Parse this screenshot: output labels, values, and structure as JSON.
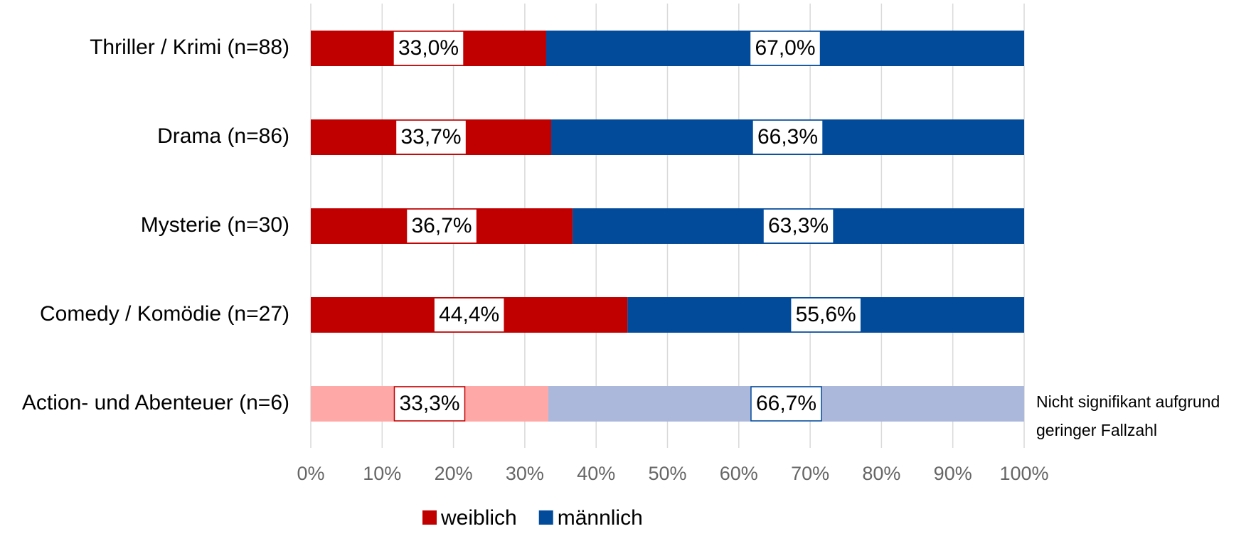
{
  "chart_data": {
    "type": "stacked_barh",
    "categories": [
      "Thriller / Krimi (n=88)",
      "Drama (n=86)",
      "Mysterie (n=30)",
      "Comedy / Komödie (n=27)",
      "Action- und Abenteuer (n=6)"
    ],
    "series": [
      {
        "name": "weiblich",
        "color": "#c00000",
        "colors": [
          "#c00000",
          "#c00000",
          "#c00000",
          "#c00000",
          "#ffa8a8"
        ],
        "values": [
          33.0,
          33.7,
          36.7,
          44.4,
          33.3
        ],
        "value_labels": [
          "33,0%",
          "33,7%",
          "36,7%",
          "44,4%",
          "33,3%"
        ]
      },
      {
        "name": "männlich",
        "color": "#024b9b",
        "colors": [
          "#024b9b",
          "#024b9b",
          "#024b9b",
          "#024b9b",
          "#abb8dc"
        ],
        "values": [
          67.0,
          66.3,
          63.3,
          55.6,
          66.7
        ],
        "value_labels": [
          "67,0%",
          "66,3%",
          "63,3%",
          "55,6%",
          "66,7%"
        ]
      }
    ],
    "xlim": [
      0,
      100
    ],
    "xticks": [
      {
        "value": 0,
        "label": "0%"
      },
      {
        "value": 10,
        "label": "10%"
      },
      {
        "value": 20,
        "label": "20%"
      },
      {
        "value": 30,
        "label": "30%"
      },
      {
        "value": 40,
        "label": "40%"
      },
      {
        "value": 50,
        "label": "50%"
      },
      {
        "value": 60,
        "label": "60%"
      },
      {
        "value": 70,
        "label": "70%"
      },
      {
        "value": 80,
        "label": "80%"
      },
      {
        "value": 90,
        "label": "90%"
      },
      {
        "value": 100,
        "label": "100%"
      }
    ],
    "grid": true,
    "legend": "bottom",
    "annotation": [
      "Nicht signifikant aufgrund",
      "geringer Fallzahl"
    ]
  }
}
